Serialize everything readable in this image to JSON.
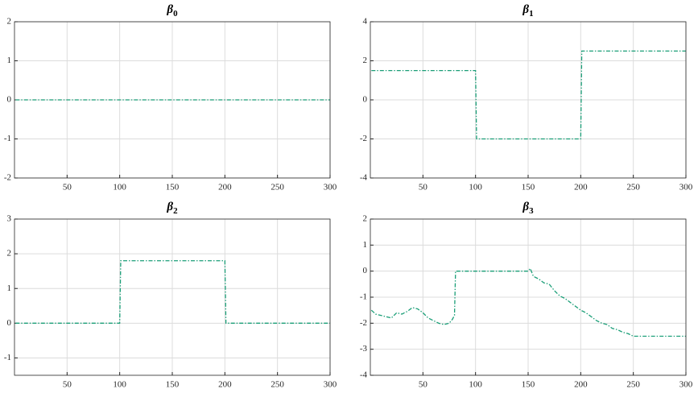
{
  "chart_data": [
    {
      "type": "line",
      "title": "β",
      "title_subscript": "0",
      "color": "#1a9e77",
      "grid": true,
      "xlim": [
        0,
        300
      ],
      "xticks": [
        50,
        100,
        150,
        200,
        250,
        300
      ],
      "ylim": [
        -2,
        2
      ],
      "yticks": [
        -2,
        -1,
        0,
        1,
        2
      ],
      "x": [
        1,
        300
      ],
      "values": [
        0,
        0
      ]
    },
    {
      "type": "line",
      "title": "β",
      "title_subscript": "1",
      "color": "#1a9e77",
      "grid": true,
      "xlim": [
        0,
        300
      ],
      "xticks": [
        50,
        100,
        150,
        200,
        250,
        300
      ],
      "ylim": [
        -4,
        4
      ],
      "yticks": [
        -4,
        -2,
        0,
        2,
        4
      ],
      "x": [
        1,
        100,
        101,
        200,
        201,
        300
      ],
      "values": [
        1.5,
        1.5,
        -2,
        -2,
        2.5,
        2.5
      ]
    },
    {
      "type": "line",
      "title": "β",
      "title_subscript": "2",
      "color": "#1a9e77",
      "grid": true,
      "xlim": [
        0,
        300
      ],
      "xticks": [
        50,
        100,
        150,
        200,
        250,
        300
      ],
      "ylim": [
        -1.5,
        3
      ],
      "yticks": [
        -1,
        0,
        1,
        2,
        3
      ],
      "x": [
        1,
        100,
        101,
        200,
        201,
        300
      ],
      "values": [
        0,
        0,
        1.8,
        1.8,
        0,
        0
      ]
    },
    {
      "type": "line",
      "title": "β",
      "title_subscript": "3",
      "color": "#1a9e77",
      "grid": true,
      "xlim": [
        0,
        300
      ],
      "xticks": [
        50,
        100,
        150,
        200,
        250,
        300
      ],
      "ylim": [
        -4,
        2
      ],
      "yticks": [
        -4,
        -3,
        -2,
        -1,
        0,
        1,
        2
      ],
      "x": [
        1,
        5,
        10,
        15,
        20,
        25,
        30,
        35,
        40,
        45,
        50,
        55,
        60,
        65,
        70,
        75,
        78,
        80,
        81,
        150,
        152,
        155,
        160,
        165,
        170,
        175,
        180,
        185,
        190,
        195,
        200,
        205,
        210,
        215,
        220,
        225,
        230,
        235,
        240,
        245,
        250,
        300
      ],
      "values": [
        -1.5,
        -1.65,
        -1.7,
        -1.75,
        -1.8,
        -1.6,
        -1.65,
        -1.55,
        -1.4,
        -1.45,
        -1.6,
        -1.8,
        -1.9,
        -2.0,
        -2.05,
        -2.0,
        -1.85,
        -1.7,
        0,
        0,
        0.1,
        -0.2,
        -0.3,
        -0.45,
        -0.5,
        -0.75,
        -0.95,
        -1.05,
        -1.2,
        -1.35,
        -1.5,
        -1.6,
        -1.75,
        -1.9,
        -2.0,
        -2.05,
        -2.2,
        -2.25,
        -2.35,
        -2.4,
        -2.5,
        -2.5
      ]
    }
  ]
}
